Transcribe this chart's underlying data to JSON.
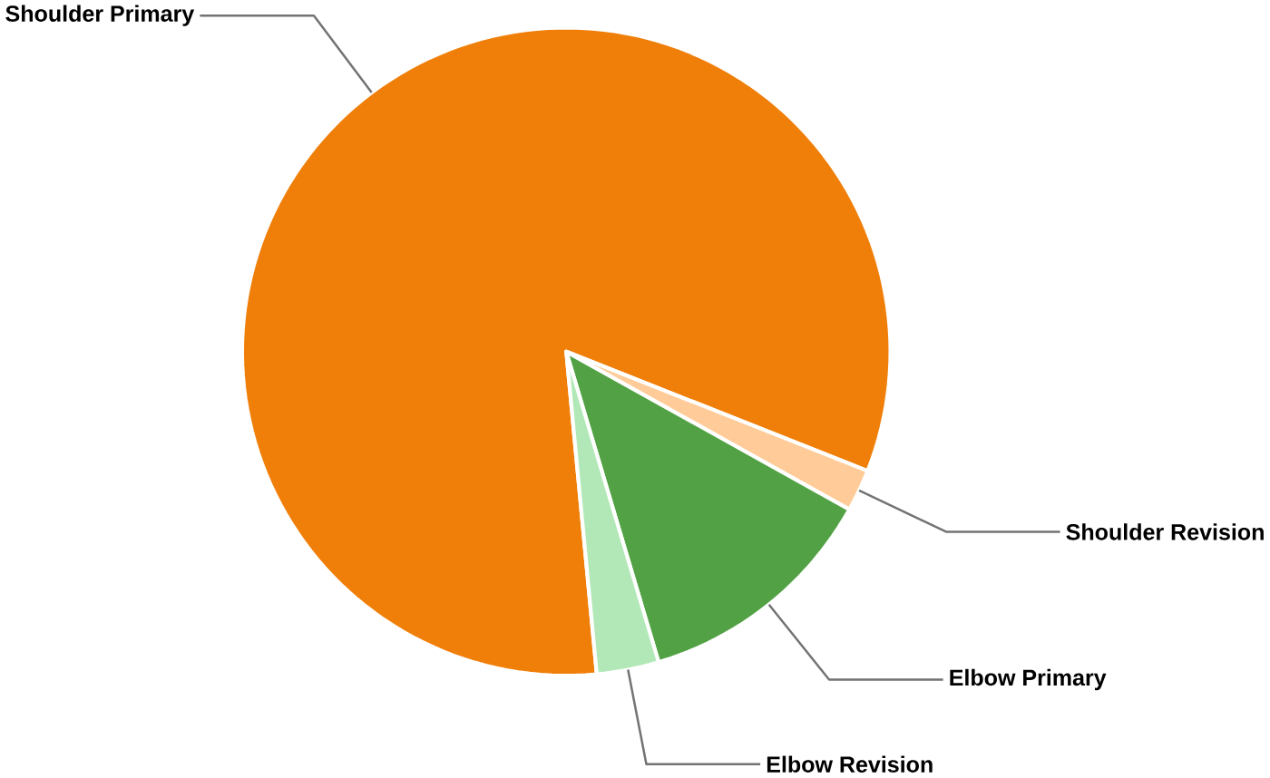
{
  "chart_data": {
    "type": "pie",
    "categories": [
      "Shoulder Primary",
      "Shoulder Revision",
      "Elbow Primary",
      "Elbow Revision"
    ],
    "values": [
      82.5,
      2.1,
      12.3,
      3.1
    ],
    "colors": [
      "#f07f09",
      "#ffcc99",
      "#52a245",
      "#b2e8b7"
    ]
  }
}
